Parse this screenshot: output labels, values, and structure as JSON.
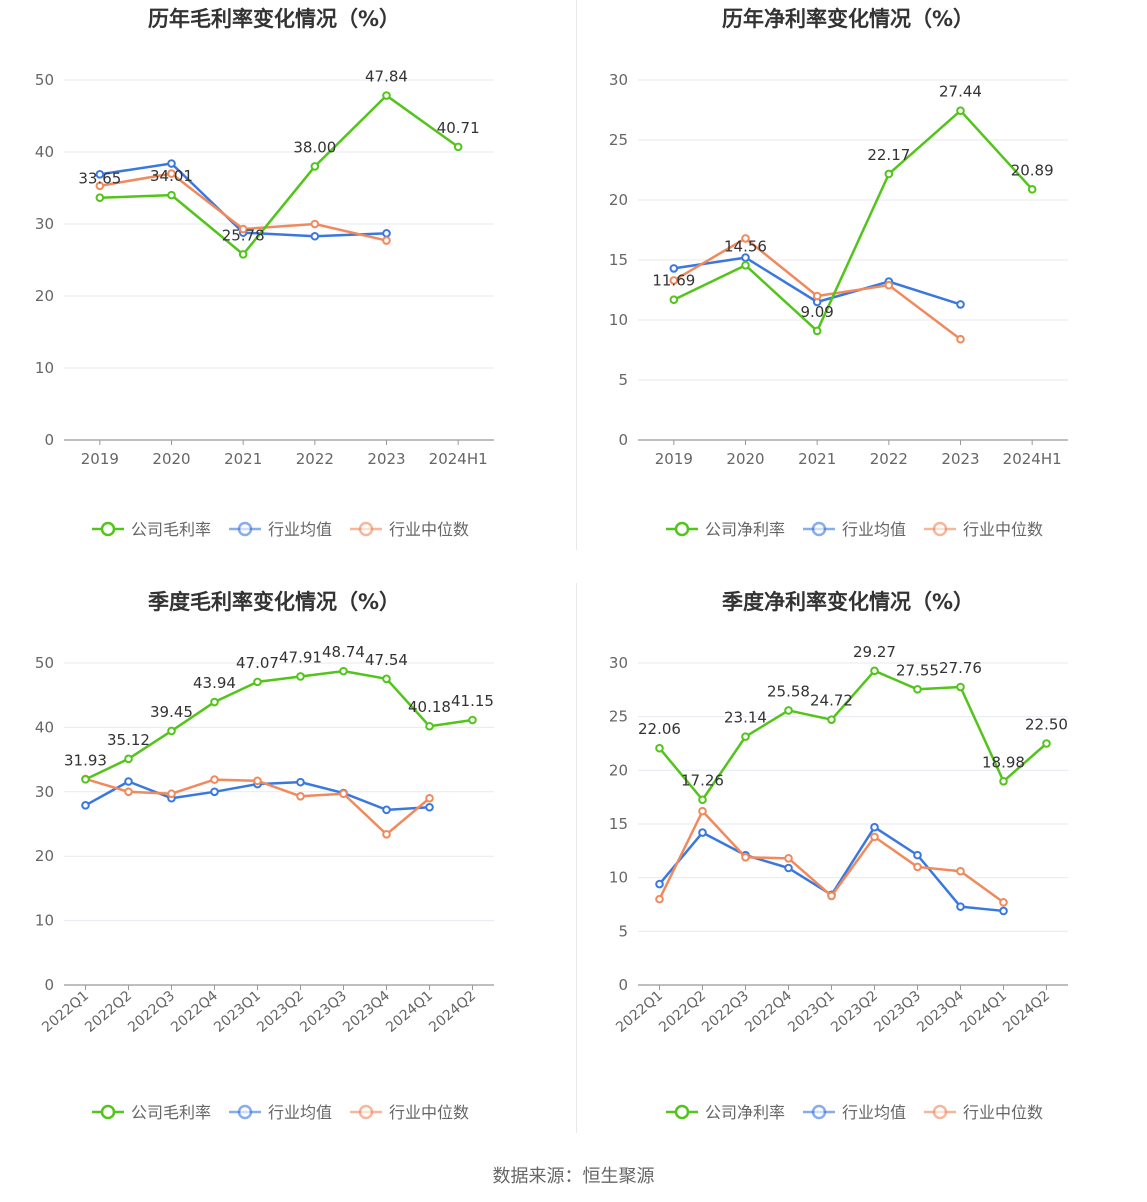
{
  "source_label": "数据来源：恒生聚源",
  "colors": {
    "company": "#52c41a",
    "avg": "#3a78e0",
    "median": "#f08a5d",
    "grid": "#e6e9f0",
    "axis": "#999999",
    "text": "#666666",
    "title": "#333333"
  },
  "chart_data": [
    {
      "type": "line",
      "title": "历年毛利率变化情况（%）",
      "categories": [
        "2019",
        "2020",
        "2021",
        "2022",
        "2023",
        "2024H1"
      ],
      "ylim": [
        0,
        50
      ],
      "yticks": [
        0,
        10,
        20,
        30,
        40,
        50
      ],
      "grid": true,
      "legend_placement": "bottom",
      "series": [
        {
          "name": "公司毛利率",
          "key": "company",
          "values": [
            33.65,
            34.01,
            25.78,
            38.0,
            47.84,
            40.71
          ],
          "labels": [
            "33.65",
            "34.01",
            "25.78",
            "38.00",
            "47.84",
            "40.71"
          ]
        },
        {
          "name": "行业均值",
          "key": "avg",
          "values": [
            36.9,
            38.4,
            28.8,
            28.3,
            28.7,
            null
          ]
        },
        {
          "name": "行业中位数",
          "key": "median",
          "values": [
            35.3,
            37.0,
            29.3,
            30.0,
            27.7,
            null
          ]
        }
      ]
    },
    {
      "type": "line",
      "title": "历年净利率变化情况（%）",
      "categories": [
        "2019",
        "2020",
        "2021",
        "2022",
        "2023",
        "2024H1"
      ],
      "ylim": [
        0,
        30
      ],
      "yticks": [
        0,
        5,
        10,
        15,
        20,
        25,
        30
      ],
      "grid": true,
      "legend_placement": "bottom",
      "series": [
        {
          "name": "公司净利率",
          "key": "company",
          "values": [
            11.69,
            14.56,
            9.09,
            22.17,
            27.44,
            20.89
          ],
          "labels": [
            "11.69",
            "14.56",
            "9.09",
            "22.17",
            "27.44",
            "20.89"
          ]
        },
        {
          "name": "行业均值",
          "key": "avg",
          "values": [
            14.3,
            15.2,
            11.5,
            13.2,
            11.3,
            null
          ]
        },
        {
          "name": "行业中位数",
          "key": "median",
          "values": [
            13.3,
            16.8,
            12.0,
            12.9,
            8.4,
            null
          ]
        }
      ]
    },
    {
      "type": "line",
      "title": "季度毛利率变化情况（%）",
      "categories": [
        "2022Q1",
        "2022Q2",
        "2022Q3",
        "2022Q4",
        "2023Q1",
        "2023Q2",
        "2023Q3",
        "2023Q4",
        "2024Q1",
        "2024Q2"
      ],
      "ylim": [
        0,
        50
      ],
      "yticks": [
        0,
        10,
        20,
        30,
        40,
        50
      ],
      "grid": true,
      "legend_placement": "bottom",
      "series": [
        {
          "name": "公司毛利率",
          "key": "company",
          "values": [
            31.93,
            35.12,
            39.45,
            43.94,
            47.07,
            47.91,
            48.74,
            47.54,
            40.18,
            41.15
          ],
          "labels": [
            "31.93",
            "35.12",
            "39.45",
            "43.94",
            "47.07",
            "47.91",
            "48.74",
            "47.54",
            "40.18",
            "41.15"
          ]
        },
        {
          "name": "行业均值",
          "key": "avg",
          "values": [
            27.9,
            31.6,
            29.0,
            30.0,
            31.2,
            31.5,
            29.8,
            27.2,
            27.6,
            null
          ]
        },
        {
          "name": "行业中位数",
          "key": "median",
          "values": [
            32.0,
            30.0,
            29.7,
            31.9,
            31.7,
            29.3,
            29.7,
            23.4,
            29.0,
            null
          ]
        }
      ]
    },
    {
      "type": "line",
      "title": "季度净利率变化情况（%）",
      "categories": [
        "2022Q1",
        "2022Q2",
        "2022Q3",
        "2022Q4",
        "2023Q1",
        "2023Q2",
        "2023Q3",
        "2023Q4",
        "2024Q1",
        "2024Q2"
      ],
      "ylim": [
        0,
        30
      ],
      "yticks": [
        0,
        5,
        10,
        15,
        20,
        25,
        30
      ],
      "grid": true,
      "legend_placement": "bottom",
      "series": [
        {
          "name": "公司净利率",
          "key": "company",
          "values": [
            22.06,
            17.26,
            23.14,
            25.58,
            24.72,
            29.27,
            27.55,
            27.76,
            18.98,
            22.5
          ],
          "labels": [
            "22.06",
            "17.26",
            "23.14",
            "25.58",
            "24.72",
            "29.27",
            "27.55",
            "27.76",
            "18.98",
            "22.50"
          ]
        },
        {
          "name": "行业均值",
          "key": "avg",
          "values": [
            9.4,
            14.2,
            12.1,
            10.9,
            8.4,
            14.7,
            12.1,
            7.3,
            6.9,
            null
          ]
        },
        {
          "name": "行业中位数",
          "key": "median",
          "values": [
            8.0,
            16.2,
            11.9,
            11.8,
            8.3,
            13.8,
            11.0,
            10.6,
            7.7,
            null
          ]
        }
      ]
    }
  ]
}
